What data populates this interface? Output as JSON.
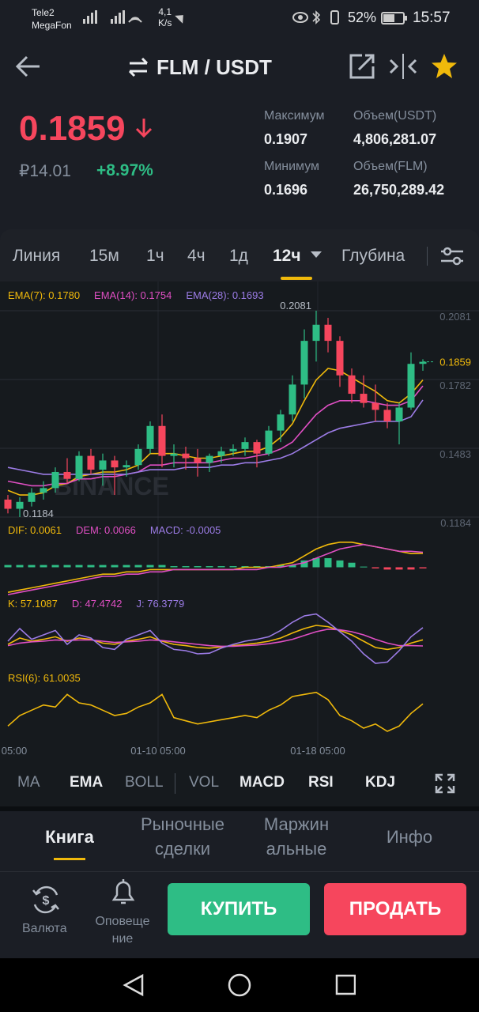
{
  "status_bar": {
    "carrier_1": "Tele2",
    "carrier_2": "MegaFon",
    "net_speed": "4,1",
    "speed_unit": "K/s",
    "battery": "52%",
    "time": "15:57"
  },
  "header": {
    "pair": "FLM / USDT"
  },
  "ticker": {
    "price": "0.1859",
    "fiat_price": "₽14.01",
    "change": "+8.97%",
    "stats": [
      {
        "label": "Максимум",
        "value": "0.1907"
      },
      {
        "label": "Объем(USDT)",
        "value": "4,806,281.07"
      },
      {
        "label": "Минимум",
        "value": "0.1696"
      },
      {
        "label": "Объем(FLM)",
        "value": "26,750,289.42"
      }
    ]
  },
  "intervals": {
    "items": [
      "Линия",
      "15м",
      "1ч",
      "4ч",
      "1д",
      "12ч",
      "Глубина"
    ],
    "active": 5
  },
  "chart": {
    "watermark": "BINANCE",
    "up_color": "#2ebd85",
    "down_color": "#f6465d",
    "price_ticks": [
      0.2081,
      0.1782,
      0.1483,
      0.1184
    ],
    "high_label": "0.2081",
    "low_label": "0.1184",
    "last_price": "0.1859",
    "candles": [
      [
        0.126,
        0.128,
        0.12,
        0.122
      ],
      [
        0.122,
        0.127,
        0.1184,
        0.125
      ],
      [
        0.125,
        0.131,
        0.123,
        0.129
      ],
      [
        0.129,
        0.134,
        0.126,
        0.131
      ],
      [
        0.131,
        0.14,
        0.129,
        0.138
      ],
      [
        0.138,
        0.144,
        0.133,
        0.135
      ],
      [
        0.135,
        0.147,
        0.134,
        0.145
      ],
      [
        0.145,
        0.148,
        0.137,
        0.139
      ],
      [
        0.139,
        0.146,
        0.132,
        0.143
      ],
      [
        0.143,
        0.145,
        0.128,
        0.14
      ],
      [
        0.14,
        0.143,
        0.136,
        0.141
      ],
      [
        0.141,
        0.15,
        0.139,
        0.148
      ],
      [
        0.148,
        0.16,
        0.146,
        0.158
      ],
      [
        0.158,
        0.163,
        0.14,
        0.145
      ],
      [
        0.145,
        0.15,
        0.14,
        0.146
      ],
      [
        0.146,
        0.149,
        0.139,
        0.144
      ],
      [
        0.144,
        0.148,
        0.136,
        0.142
      ],
      [
        0.142,
        0.146,
        0.138,
        0.145
      ],
      [
        0.145,
        0.149,
        0.142,
        0.147
      ],
      [
        0.147,
        0.15,
        0.145,
        0.148
      ],
      [
        0.148,
        0.153,
        0.145,
        0.151
      ],
      [
        0.151,
        0.152,
        0.14,
        0.146
      ],
      [
        0.146,
        0.158,
        0.145,
        0.156
      ],
      [
        0.156,
        0.165,
        0.151,
        0.163
      ],
      [
        0.163,
        0.18,
        0.16,
        0.176
      ],
      [
        0.176,
        0.2,
        0.17,
        0.195
      ],
      [
        0.195,
        0.2081,
        0.186,
        0.202
      ],
      [
        0.202,
        0.205,
        0.19,
        0.195
      ],
      [
        0.195,
        0.197,
        0.175,
        0.18
      ],
      [
        0.18,
        0.183,
        0.168,
        0.172
      ],
      [
        0.172,
        0.18,
        0.166,
        0.168
      ],
      [
        0.168,
        0.176,
        0.16,
        0.165
      ],
      [
        0.165,
        0.168,
        0.157,
        0.16
      ],
      [
        0.16,
        0.168,
        0.15,
        0.166
      ],
      [
        0.166,
        0.19,
        0.165,
        0.185
      ],
      [
        0.185,
        0.187,
        0.182,
        0.1859
      ]
    ],
    "ema": [
      {
        "label": "EMA(7): 0.1780",
        "color": "#f0b90b",
        "values": [
          0.13,
          0.128,
          0.128,
          0.129,
          0.132,
          0.133,
          0.136,
          0.137,
          0.138,
          0.138,
          0.139,
          0.141,
          0.146,
          0.146,
          0.146,
          0.145,
          0.144,
          0.144,
          0.145,
          0.146,
          0.147,
          0.147,
          0.149,
          0.153,
          0.159,
          0.169,
          0.178,
          0.183,
          0.182,
          0.179,
          0.176,
          0.173,
          0.169,
          0.168,
          0.172,
          0.178
        ]
      },
      {
        "label": "EMA(14): 0.1754",
        "color": "#e04fc4",
        "values": [
          0.134,
          0.133,
          0.132,
          0.132,
          0.133,
          0.133,
          0.135,
          0.135,
          0.136,
          0.136,
          0.137,
          0.138,
          0.141,
          0.141,
          0.142,
          0.142,
          0.142,
          0.142,
          0.143,
          0.144,
          0.144,
          0.145,
          0.146,
          0.148,
          0.151,
          0.157,
          0.163,
          0.167,
          0.169,
          0.169,
          0.169,
          0.168,
          0.167,
          0.167,
          0.169,
          0.1754
        ]
      },
      {
        "label": "EMA(28): 0.1693",
        "color": "#9c7ce6",
        "values": [
          0.14,
          0.139,
          0.138,
          0.137,
          0.137,
          0.137,
          0.137,
          0.137,
          0.137,
          0.137,
          0.137,
          0.138,
          0.139,
          0.139,
          0.139,
          0.14,
          0.14,
          0.14,
          0.141,
          0.141,
          0.142,
          0.142,
          0.143,
          0.144,
          0.146,
          0.149,
          0.152,
          0.155,
          0.157,
          0.158,
          0.159,
          0.16,
          0.16,
          0.16,
          0.162,
          0.1693
        ]
      }
    ],
    "macd": {
      "ylim": [
        -0.013,
        0.013
      ],
      "lines": [
        {
          "label": "DIF: 0.0061",
          "color": "#f0b90b",
          "values": [
            -0.011,
            -0.01,
            -0.009,
            -0.008,
            -0.007,
            -0.006,
            -0.005,
            -0.004,
            -0.003,
            -0.003,
            -0.002,
            -0.002,
            -0.001,
            -0.001,
            -0.001,
            -0.001,
            -0.001,
            -0.001,
            -0.001,
            -0.001,
            0.0,
            0.0,
            0.0,
            0.001,
            0.002,
            0.005,
            0.008,
            0.01,
            0.011,
            0.011,
            0.01,
            0.009,
            0.008,
            0.007,
            0.006,
            0.0061
          ]
        },
        {
          "label": "DEM: 0.0066",
          "color": "#e04fc4",
          "values": [
            -0.012,
            -0.011,
            -0.01,
            -0.009,
            -0.008,
            -0.007,
            -0.006,
            -0.005,
            -0.004,
            -0.004,
            -0.003,
            -0.003,
            -0.002,
            -0.002,
            -0.001,
            -0.001,
            -0.001,
            -0.001,
            -0.001,
            -0.001,
            -0.001,
            -0.001,
            0.0,
            0.0,
            0.001,
            0.002,
            0.004,
            0.006,
            0.008,
            0.009,
            0.01,
            0.009,
            0.008,
            0.007,
            0.007,
            0.0066
          ]
        }
      ],
      "histogram": {
        "label": "MACD: -0.0005",
        "color": "#9c7ce6",
        "values": [
          0.001,
          0.001,
          0.001,
          0.001,
          0.001,
          0.001,
          0.001,
          0.001,
          0.001,
          0.001,
          0.001,
          0.001,
          0.001,
          0.001,
          0.0005,
          0.0005,
          0.0005,
          0.0005,
          0.0005,
          0.0005,
          0.0005,
          0.0005,
          0.0005,
          0.001,
          0.001,
          0.003,
          0.004,
          0.004,
          0.003,
          0.002,
          0.0003,
          -0.0005,
          -0.001,
          -0.001,
          -0.001,
          -0.0005
        ]
      }
    },
    "kdj": {
      "ylim": [
        0,
        100
      ],
      "lines": [
        {
          "label": "K: 57.1087",
          "color": "#f0b90b",
          "values": [
            50,
            60,
            55,
            58,
            62,
            55,
            60,
            58,
            52,
            50,
            55,
            58,
            62,
            55,
            50,
            48,
            45,
            44,
            46,
            48,
            50,
            52,
            55,
            60,
            68,
            75,
            80,
            78,
            72,
            65,
            55,
            45,
            42,
            45,
            52,
            57.1087
          ]
        },
        {
          "label": "D: 47.4742",
          "color": "#e04fc4",
          "values": [
            48,
            52,
            54,
            55,
            57,
            56,
            57,
            57,
            55,
            53,
            54,
            55,
            57,
            56,
            54,
            52,
            50,
            48,
            47,
            47,
            48,
            49,
            51,
            54,
            58,
            64,
            70,
            74,
            73,
            70,
            65,
            58,
            52,
            48,
            48,
            47.4742
          ]
        },
        {
          "label": "J: 76.3779",
          "color": "#9c7ce6",
          "values": [
            55,
            75,
            58,
            65,
            72,
            50,
            65,
            60,
            45,
            42,
            58,
            65,
            72,
            52,
            42,
            40,
            35,
            36,
            44,
            50,
            55,
            58,
            62,
            72,
            85,
            95,
            98,
            85,
            70,
            55,
            35,
            20,
            22,
            40,
            62,
            76.3779
          ]
        }
      ]
    },
    "rsi": {
      "ylim": [
        20,
        80
      ],
      "lines": [
        {
          "label": "RSI(6): 61.0035",
          "color": "#f0b90b",
          "values": [
            40,
            50,
            55,
            60,
            58,
            70,
            62,
            60,
            55,
            50,
            52,
            58,
            62,
            70,
            48,
            45,
            42,
            44,
            46,
            48,
            50,
            48,
            55,
            60,
            68,
            70,
            72,
            65,
            50,
            45,
            38,
            42,
            35,
            40,
            52,
            61.0035
          ]
        }
      ]
    },
    "time_labels": [
      "05:00",
      "01-10 05:00",
      "01-18 05:00"
    ]
  },
  "indicator_tabs": [
    "MA",
    "EMA",
    "BOLL",
    "VOL",
    "MACD",
    "RSI",
    "KDJ"
  ],
  "bottom_tabs": [
    [
      "Книга"
    ],
    [
      "Рыночные",
      "сделки"
    ],
    [
      "Маржин",
      "альные"
    ],
    [
      "Инфо"
    ]
  ],
  "actions": {
    "currency": [
      "Валюта"
    ],
    "alerts": [
      "Оповеще",
      "ние"
    ],
    "buy": "КУПИТЬ",
    "sell": "ПРОДАТЬ"
  }
}
